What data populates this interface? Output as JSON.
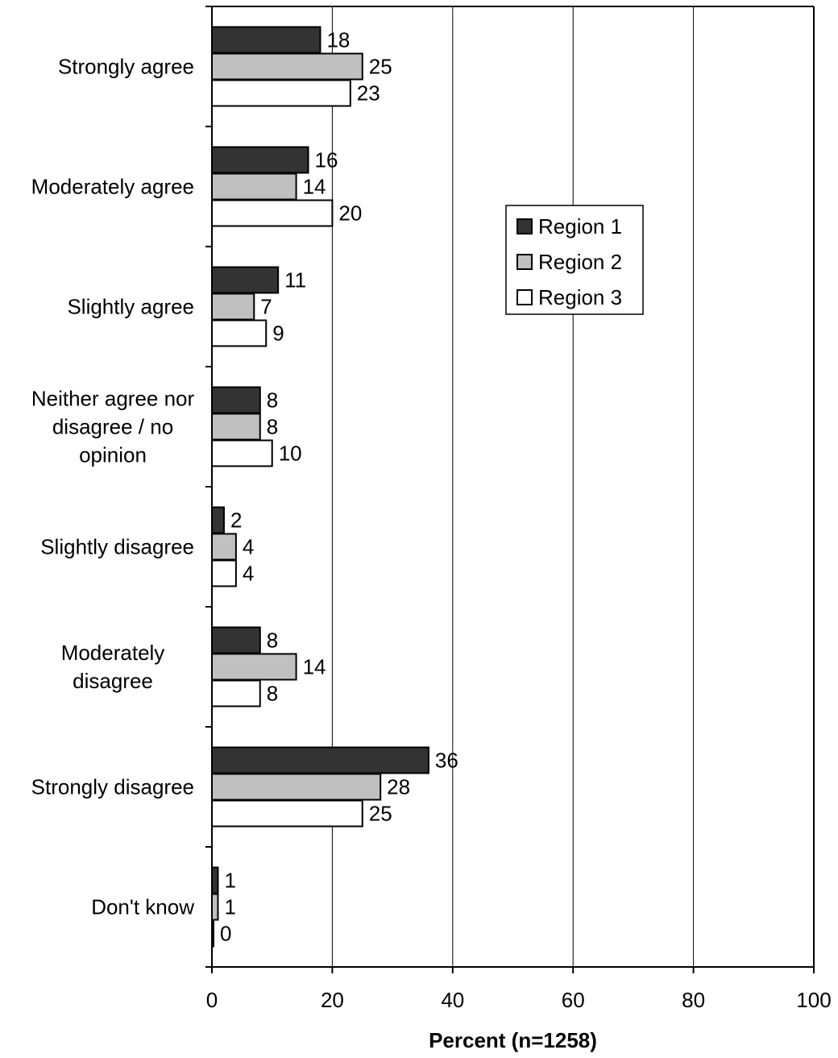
{
  "chart_data": {
    "type": "bar",
    "orientation": "horizontal",
    "categories": [
      [
        "Strongly agree"
      ],
      [
        "Moderately agree"
      ],
      [
        "Slightly agree"
      ],
      [
        "Neither agree nor",
        "disagree / no",
        "opinion"
      ],
      [
        "Slightly disagree"
      ],
      [
        "Moderately",
        "disagree"
      ],
      [
        "Strongly disagree"
      ],
      [
        "Don't know"
      ]
    ],
    "series": [
      {
        "name": "Region 1",
        "color": "#333333",
        "values": [
          18,
          16,
          11,
          8,
          2,
          8,
          36,
          1
        ]
      },
      {
        "name": "Region 2",
        "color": "#c0c0c0",
        "values": [
          25,
          14,
          7,
          8,
          4,
          14,
          28,
          1
        ]
      },
      {
        "name": "Region 3",
        "color": "#ffffff",
        "values": [
          23,
          20,
          9,
          10,
          4,
          8,
          25,
          0
        ]
      }
    ],
    "xlabel": "Percent (n=1258)",
    "xlim": [
      0,
      100
    ],
    "xticks": [
      0,
      20,
      40,
      60,
      80,
      100
    ],
    "grid": "vertical",
    "legend_position": "center-right"
  }
}
